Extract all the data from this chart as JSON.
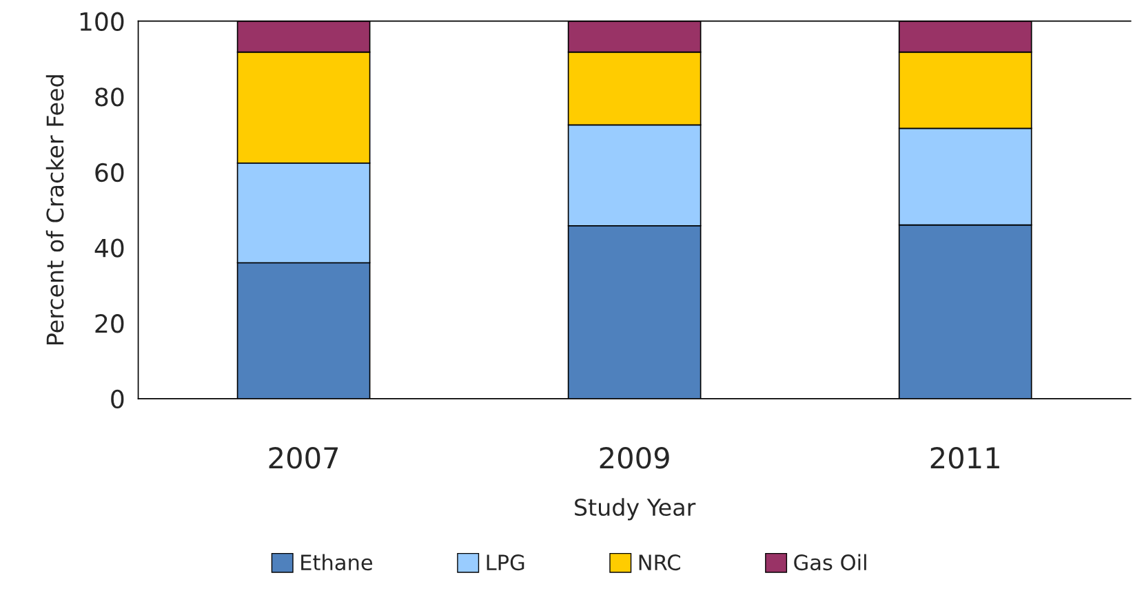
{
  "chart_data": {
    "type": "bar",
    "stacked": true,
    "xlabel": "Study Year",
    "ylabel": "Percent of Cracker Feed",
    "categories": [
      "2007",
      "2009",
      "2011"
    ],
    "series": [
      {
        "name": "Ethane",
        "color": "#4f81bd",
        "values": [
          36,
          45.8,
          46
        ]
      },
      {
        "name": "LPG",
        "color": "#99ccff",
        "values": [
          26.4,
          26.7,
          25.6
        ]
      },
      {
        "name": "NRC",
        "color": "#ffcc00",
        "values": [
          29.4,
          19.3,
          20.2
        ]
      },
      {
        "name": "Gas Oil",
        "color": "#993366",
        "values": [
          8.2,
          8.2,
          8.2
        ]
      }
    ],
    "ylim": [
      0,
      100
    ],
    "yticks": [
      0,
      20,
      40,
      60,
      80,
      100
    ],
    "grid": false,
    "legend": "bottom"
  }
}
